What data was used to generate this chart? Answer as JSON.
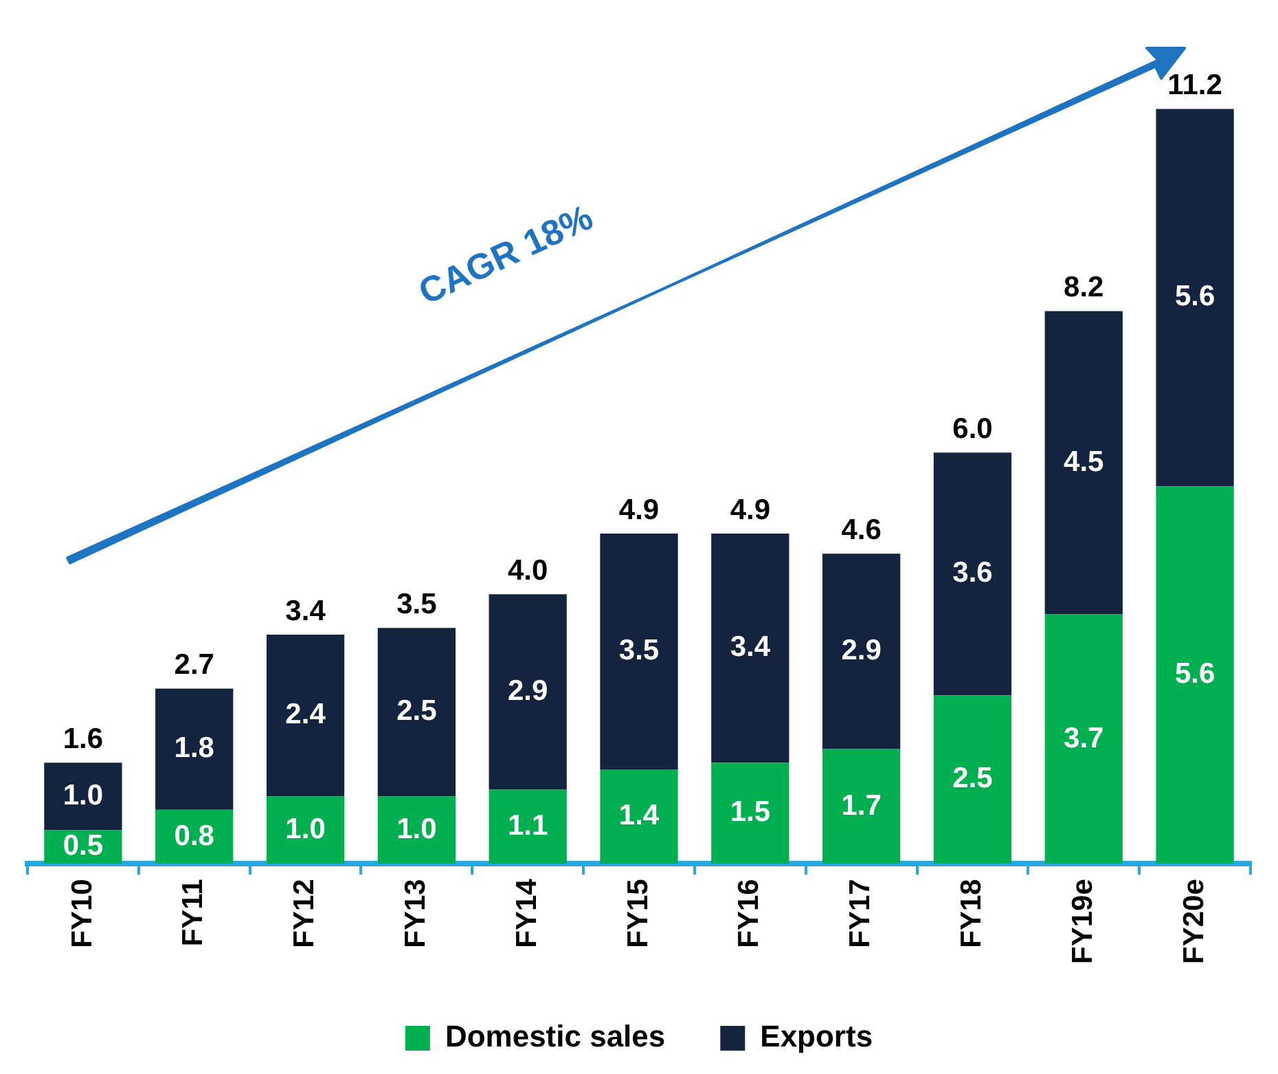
{
  "chart_data": {
    "type": "bar",
    "stacked": true,
    "categories": [
      "FY10",
      "FY11",
      "FY12",
      "FY13",
      "FY14",
      "FY15",
      "FY16",
      "FY17",
      "FY18",
      "FY19e",
      "FY20e"
    ],
    "series": [
      {
        "name": "Domestic sales",
        "color": "#00b050",
        "values": [
          0.5,
          0.8,
          1.0,
          1.0,
          1.1,
          1.4,
          1.5,
          1.7,
          2.5,
          3.7,
          5.6
        ],
        "value_labels": [
          "0.5",
          "0.8",
          "1.0",
          "1.0",
          "1.1",
          "1.4",
          "1.5",
          "1.7",
          "2.5",
          "3.7",
          "5.6"
        ]
      },
      {
        "name": "Exports",
        "color": "#14243f",
        "values": [
          1.0,
          1.8,
          2.4,
          2.5,
          2.9,
          3.5,
          3.4,
          2.9,
          3.6,
          4.5,
          5.6
        ],
        "value_labels": [
          "1.0",
          "1.8",
          "2.4",
          "2.5",
          "2.9",
          "3.5",
          "3.4",
          "2.9",
          "3.6",
          "4.5",
          "5.6"
        ]
      }
    ],
    "totals": [
      "1.6",
      "2.7",
      "3.4",
      "3.5",
      "4.0",
      "4.9",
      "4.9",
      "4.6",
      "6.0",
      "8.2",
      "11.2"
    ],
    "grid": false,
    "legend": "bottom",
    "annotations": [
      "CAGR 18%"
    ]
  }
}
